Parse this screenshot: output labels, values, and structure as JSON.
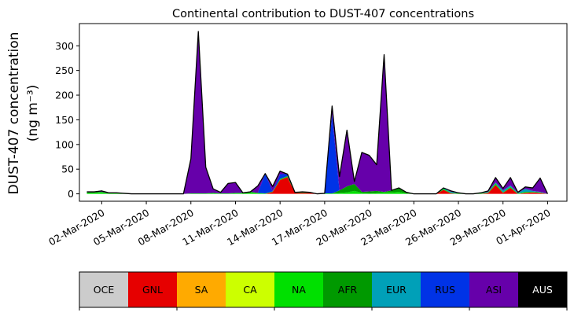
{
  "chart_data": {
    "type": "area",
    "stacked": true,
    "title": "Continental contribution to DUST-407 concentrations",
    "ylabel_line1": "DUST-407 concentration",
    "ylabel_line2": "(ng m⁻³)",
    "xlabel": "",
    "ylim": [
      -15,
      345
    ],
    "xlim_days": [
      -1.5,
      31.3
    ],
    "grid": false,
    "y_ticks": [
      0,
      50,
      100,
      150,
      200,
      250,
      300
    ],
    "x_tick_labels": [
      "02-Mar-2020",
      "05-Mar-2020",
      "08-Mar-2020",
      "11-Mar-2020",
      "14-Mar-2020",
      "17-Mar-2020",
      "20-Mar-2020",
      "23-Mar-2020",
      "26-Mar-2020",
      "29-Mar-2020",
      "01-Apr-2020"
    ],
    "x_tick_days": [
      0,
      3,
      6,
      9,
      12,
      15,
      18,
      21,
      24,
      27,
      30
    ],
    "x_days": [
      -1,
      -0.5,
      0,
      0.5,
      1,
      1.5,
      2,
      2.5,
      3,
      3.5,
      4,
      4.5,
      5,
      5.5,
      6,
      6.5,
      7,
      7.5,
      8,
      8.5,
      9,
      9.5,
      10,
      10.5,
      11,
      11.5,
      12,
      12.5,
      13,
      13.5,
      14,
      14.5,
      15,
      15.5,
      16,
      16.5,
      17,
      17.5,
      18,
      18.5,
      19,
      19.5,
      20,
      20.5,
      21,
      21.5,
      22,
      22.5,
      23,
      23.5,
      24,
      24.5,
      25,
      25.5,
      26,
      26.5,
      27,
      27.5,
      28,
      28.5,
      29,
      29.5,
      30
    ],
    "series": [
      {
        "name": "OCE",
        "color": "#cccccc",
        "values": [
          0,
          0,
          0,
          0,
          0,
          0,
          0,
          0,
          0,
          0,
          0,
          0,
          0,
          0,
          0,
          0,
          0,
          0,
          0,
          0,
          0,
          0,
          0,
          0,
          0,
          0,
          0,
          0,
          0,
          0,
          0,
          0,
          0,
          0,
          0,
          0,
          0,
          0,
          0,
          0,
          0,
          0,
          0,
          0,
          0,
          0,
          0,
          0,
          0,
          0,
          0,
          0,
          0,
          0,
          0,
          0,
          0,
          0,
          0,
          0,
          0,
          0,
          0
        ]
      },
      {
        "name": "GNL",
        "color": "#e60000",
        "values": [
          0,
          0,
          0,
          0,
          0,
          0,
          0,
          0,
          0,
          0,
          0,
          0,
          0,
          0,
          0,
          0,
          0,
          0,
          0,
          0,
          0,
          0,
          0,
          0,
          0,
          4,
          28,
          34,
          2,
          2,
          2,
          0,
          0,
          0,
          0,
          0,
          0,
          0,
          0,
          0,
          0,
          0,
          0,
          0,
          0,
          0,
          0,
          0,
          8,
          1,
          0,
          0,
          0,
          0,
          2,
          18,
          2,
          12,
          0,
          2,
          3,
          2,
          0
        ]
      },
      {
        "name": "SA",
        "color": "#ffaa00",
        "values": [
          0,
          0,
          0,
          0,
          0,
          0,
          0,
          0,
          0,
          0,
          0,
          0,
          0,
          0,
          0,
          0,
          0,
          0,
          0,
          0,
          0,
          0,
          0,
          0,
          0,
          0,
          0,
          0,
          0,
          0,
          0,
          0,
          0,
          0,
          0,
          0,
          0,
          0,
          0,
          0,
          0,
          0,
          0,
          0,
          0,
          0,
          0,
          0,
          0,
          0,
          0,
          0,
          0,
          0,
          0,
          0,
          0,
          0,
          0,
          0,
          0,
          0,
          0
        ]
      },
      {
        "name": "CA",
        "color": "#ccff00",
        "values": [
          0,
          0,
          0,
          0,
          0,
          0,
          0,
          0,
          0,
          0,
          0,
          0,
          0,
          0,
          0,
          0,
          0,
          0,
          0,
          0,
          0,
          0,
          0,
          0,
          0,
          0,
          0,
          0,
          0,
          0,
          0,
          0,
          0,
          0,
          0,
          0,
          0,
          0,
          0,
          0,
          0,
          0,
          0,
          0,
          0,
          0,
          0,
          0,
          0,
          0,
          0,
          0,
          0,
          0,
          0,
          0,
          0,
          0,
          0,
          0,
          0,
          0,
          0
        ]
      },
      {
        "name": "NA",
        "color": "#00e000",
        "values": [
          3,
          3,
          4,
          1,
          1,
          1,
          0,
          0,
          0,
          0,
          0,
          0,
          0,
          0,
          1,
          1,
          1,
          2,
          1,
          1,
          2,
          2,
          4,
          2,
          1,
          1,
          2,
          2,
          1,
          1,
          1,
          0,
          1,
          1,
          2,
          3,
          6,
          2,
          1,
          2,
          3,
          3,
          4,
          1,
          0,
          0,
          0,
          0,
          2,
          1,
          1,
          0,
          0,
          1,
          1,
          3,
          1,
          2,
          1,
          2,
          1,
          1,
          0
        ]
      },
      {
        "name": "AFR",
        "color": "#009900",
        "values": [
          0,
          0,
          0,
          0,
          0,
          0,
          0,
          0,
          0,
          0,
          0,
          0,
          0,
          0,
          0,
          0,
          0,
          0,
          0,
          0,
          0,
          0,
          0,
          0,
          0,
          0,
          0,
          0,
          0,
          0,
          0,
          0,
          0,
          0,
          5,
          12,
          14,
          2,
          4,
          4,
          1,
          4,
          8,
          2,
          0,
          0,
          0,
          0,
          0,
          0,
          0,
          0,
          0,
          0,
          0,
          0,
          0,
          0,
          0,
          0,
          0,
          0,
          0
        ]
      },
      {
        "name": "EUR",
        "color": "#00a0b8",
        "values": [
          0,
          0,
          0,
          0,
          0,
          0,
          0,
          0,
          0,
          0,
          0,
          0,
          0,
          0,
          0,
          0,
          0,
          0,
          0,
          0,
          0,
          0,
          0,
          0,
          0,
          0,
          0,
          0,
          0,
          0,
          0,
          0,
          0,
          0,
          0,
          0,
          0,
          0,
          0,
          0,
          0,
          0,
          0,
          0,
          0,
          0,
          0,
          0,
          2,
          2,
          1,
          0,
          0,
          1,
          1,
          2,
          4,
          3,
          1,
          6,
          2,
          1,
          0
        ]
      },
      {
        "name": "RUS",
        "color": "#0033e6",
        "values": [
          0,
          0,
          0,
          0,
          0,
          0,
          0,
          0,
          0,
          0,
          0,
          0,
          0,
          0,
          0,
          0,
          0,
          0,
          0,
          0,
          0,
          0,
          0,
          0,
          40,
          0,
          10,
          4,
          0,
          1,
          0,
          0,
          0,
          160,
          0,
          0,
          0,
          0,
          0,
          0,
          0,
          0,
          0,
          0,
          0,
          0,
          0,
          0,
          0,
          0,
          0,
          0,
          0,
          0,
          0,
          0,
          0,
          0,
          0,
          0,
          0,
          0,
          0
        ]
      },
      {
        "name": "ASI",
        "color": "#6600aa",
        "values": [
          1,
          1,
          2,
          1,
          1,
          0,
          0,
          0,
          0,
          0,
          0,
          0,
          0,
          0,
          70,
          328,
          53,
          8,
          2,
          20,
          21,
          0,
          0,
          14,
          0,
          10,
          6,
          0,
          0,
          0,
          0,
          0,
          0,
          17,
          28,
          114,
          5,
          80,
          73,
          53,
          278,
          0,
          0,
          0,
          0,
          0,
          0,
          0,
          0,
          2,
          0,
          0,
          0,
          0,
          2,
          10,
          4,
          16,
          1,
          4,
          6,
          28,
          0
        ]
      },
      {
        "name": "AUS",
        "color": "#000000",
        "values": [
          0,
          0,
          0,
          0,
          0,
          0,
          0,
          0,
          0,
          0,
          0,
          0,
          0,
          0,
          0,
          0,
          0,
          0,
          0,
          0,
          0,
          0,
          0,
          0,
          0,
          0,
          0,
          0,
          0,
          0,
          0,
          0,
          0,
          0,
          0,
          0,
          0,
          0,
          0,
          0,
          0,
          0,
          0,
          0,
          0,
          0,
          0,
          0,
          0,
          0,
          0,
          0,
          0,
          0,
          0,
          0,
          0,
          0,
          0,
          0,
          0,
          0,
          0
        ]
      }
    ],
    "legend": {
      "placement": "bottom",
      "style": "colorbar",
      "items": [
        {
          "label": "OCE",
          "color": "#cccccc",
          "text_color": "#000000"
        },
        {
          "label": "GNL",
          "color": "#e60000",
          "text_color": "#000000"
        },
        {
          "label": "SA",
          "color": "#ffaa00",
          "text_color": "#000000"
        },
        {
          "label": "CA",
          "color": "#ccff00",
          "text_color": "#000000"
        },
        {
          "label": "NA",
          "color": "#00e000",
          "text_color": "#000000"
        },
        {
          "label": "AFR",
          "color": "#009900",
          "text_color": "#000000"
        },
        {
          "label": "EUR",
          "color": "#00a0b8",
          "text_color": "#000000"
        },
        {
          "label": "RUS",
          "color": "#0033e6",
          "text_color": "#000000"
        },
        {
          "label": "ASI",
          "color": "#6600aa",
          "text_color": "#000000"
        },
        {
          "label": "AUS",
          "color": "#000000",
          "text_color": "#ffffff"
        }
      ]
    }
  }
}
